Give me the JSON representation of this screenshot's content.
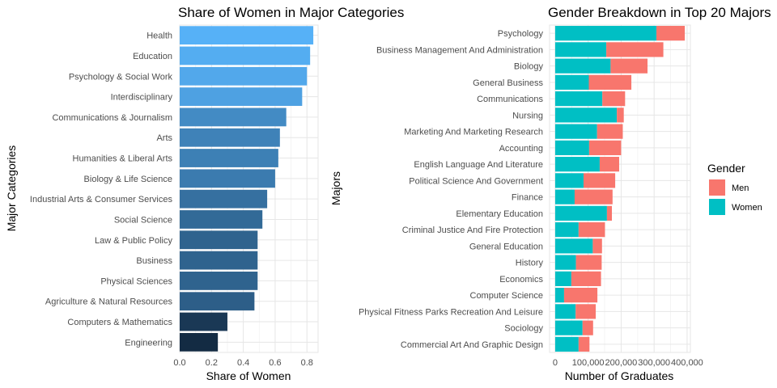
{
  "chart_data": [
    {
      "type": "bar",
      "orientation": "horizontal",
      "title": "Share of Women in Major Categories",
      "xlabel": "Share of Women",
      "ylabel": "Major Categories",
      "xlim": [
        0,
        0.87
      ],
      "xticks": [
        0.0,
        0.2,
        0.4,
        0.6,
        0.8
      ],
      "xtick_labels": [
        "0.0",
        "0.2",
        "0.4",
        "0.6",
        "0.8"
      ],
      "grid": true,
      "color_scale": {
        "low": "#132B43",
        "high": "#56B1F7"
      },
      "categories": [
        "Health",
        "Education",
        "Psychology & Social Work",
        "Interdisciplinary",
        "Communications & Journalism",
        "Arts",
        "Humanities & Liberal Arts",
        "Biology & Life Science",
        "Industrial Arts & Consumer Services",
        "Social Science",
        "Law & Public Policy",
        "Business",
        "Physical Sciences",
        "Agriculture & Natural Resources",
        "Computers & Mathematics",
        "Engineering"
      ],
      "values": [
        0.84,
        0.82,
        0.8,
        0.77,
        0.67,
        0.63,
        0.62,
        0.6,
        0.55,
        0.52,
        0.49,
        0.49,
        0.49,
        0.47,
        0.3,
        0.24
      ]
    },
    {
      "type": "bar",
      "orientation": "horizontal",
      "stacked": true,
      "title": "Gender Breakdown in Top 20 Majors",
      "xlabel": "Number of Graduates",
      "ylabel": "Majors",
      "xlim": [
        -17000,
        410000
      ],
      "xticks": [
        0,
        100000,
        200000,
        300000,
        400000
      ],
      "xtick_labels": [
        "0",
        "100,000",
        "200,000",
        "300,000",
        "400,000"
      ],
      "grid": true,
      "legend": {
        "title": "Gender",
        "position": "right",
        "entries": [
          {
            "name": "Men",
            "color": "#F8766D"
          },
          {
            "name": "Women",
            "color": "#00BFC4"
          }
        ]
      },
      "categories": [
        "Psychology",
        "Business Management And Administration",
        "Biology",
        "General Business",
        "Communications",
        "Nursing",
        "Marketing And Marketing Research",
        "Accounting",
        "English Language And Literature",
        "Political Science And Government",
        "Finance",
        "Elementary Education",
        "Criminal Justice And Fire Protection",
        "General Education",
        "History",
        "Economics",
        "Computer Science",
        "Physical Fitness Parks Recreation And Leisure",
        "Sociology",
        "Commercial Art And Graphic Design"
      ],
      "series": [
        {
          "name": "Women",
          "color": "#00BFC4",
          "values": [
            307000,
            155000,
            168000,
            102000,
            143000,
            187000,
            127000,
            103000,
            135000,
            86000,
            59000,
            157000,
            71000,
            114000,
            63000,
            49000,
            27000,
            62000,
            83000,
            71000
          ]
        },
        {
          "name": "Men",
          "color": "#F8766D",
          "values": [
            86000,
            173000,
            112000,
            129000,
            69000,
            21000,
            78000,
            97000,
            59000,
            96000,
            115000,
            15000,
            80000,
            28000,
            78000,
            90000,
            101000,
            61000,
            32000,
            33000
          ]
        }
      ]
    }
  ]
}
